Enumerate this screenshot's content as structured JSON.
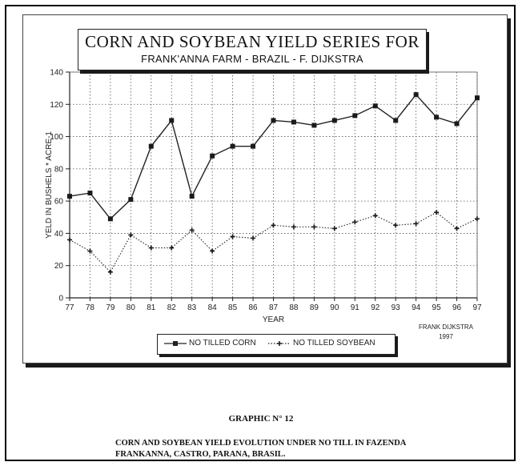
{
  "chart_data": {
    "type": "line",
    "title": "CORN AND SOYBEAN YIELD SERIES FOR",
    "subtitle": "FRANK'ANNA FARM - BRAZIL - F. DIJKSTRA",
    "xlabel": "YEAR",
    "ylabel": "YELD IN BUSHELS * ACRE-1",
    "categories": [
      "77",
      "78",
      "79",
      "80",
      "81",
      "82",
      "83",
      "84",
      "85",
      "86",
      "87",
      "88",
      "89",
      "90",
      "91",
      "92",
      "93",
      "94",
      "95",
      "96",
      "97"
    ],
    "ylim": [
      0,
      140
    ],
    "yticks": [
      0,
      20,
      40,
      60,
      80,
      100,
      120,
      140
    ],
    "grid": true,
    "legend_position": "bottom",
    "series": [
      {
        "name": "NO TILLED CORN",
        "marker": "square",
        "line_style": "solid",
        "values": [
          63,
          65,
          49,
          61,
          94,
          110,
          63,
          88,
          94,
          94,
          110,
          109,
          107,
          110,
          113,
          119,
          110,
          126,
          112,
          108,
          124
        ]
      },
      {
        "name": "NO TILLED SOYBEAN",
        "marker": "plus",
        "line_style": "dotted",
        "values": [
          36,
          29,
          16,
          39,
          31,
          31,
          42,
          29,
          38,
          37,
          45,
          44,
          44,
          43,
          47,
          51,
          45,
          46,
          53,
          43,
          49
        ]
      }
    ]
  },
  "credit": {
    "line1": "FRANK DIJKSTRA",
    "line2": "1997"
  },
  "caption": {
    "title": "GRAPHIC N° 12",
    "text_line1": "CORN AND SOYBEAN YIELD EVOLUTION UNDER NO TILL IN FAZENDA",
    "text_line2": "FRANKANNA, CASTRO, PARANA, BRASIL."
  }
}
